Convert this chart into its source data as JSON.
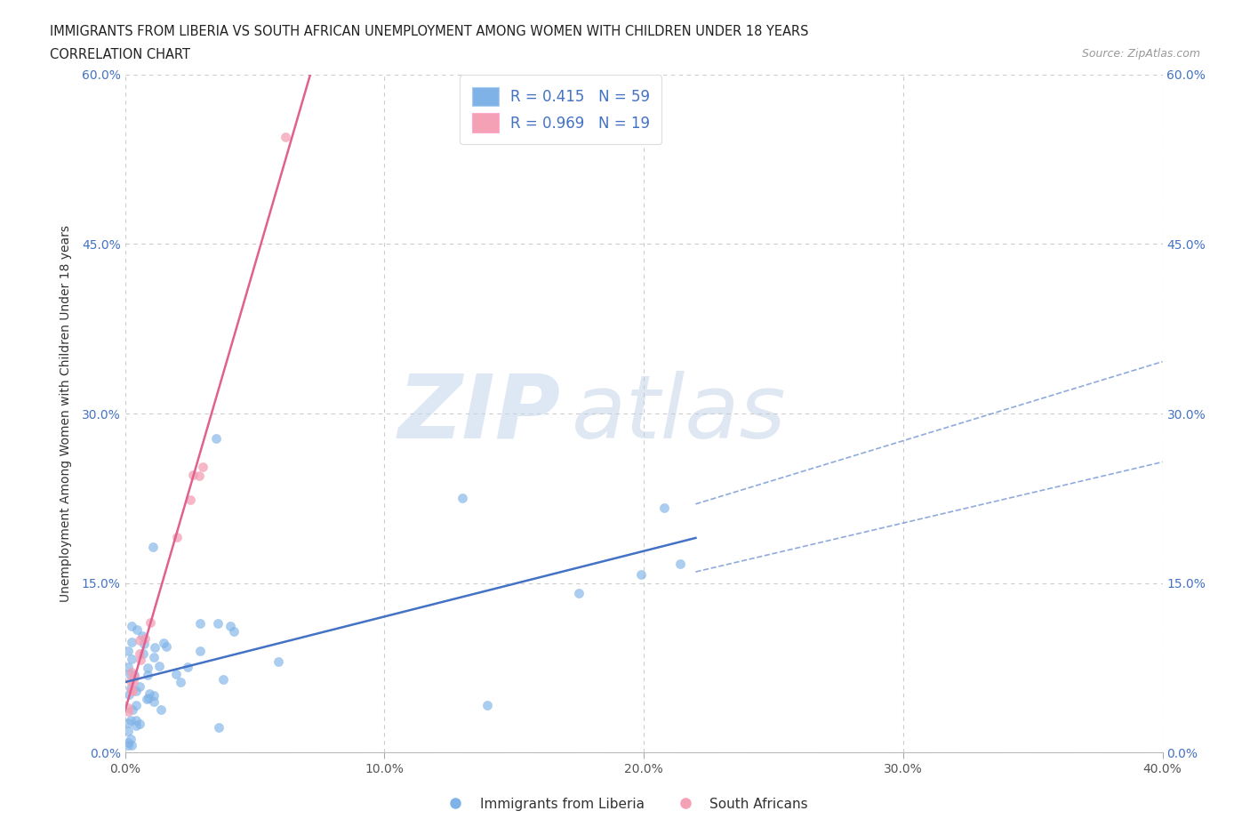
{
  "title_line1": "IMMIGRANTS FROM LIBERIA VS SOUTH AFRICAN UNEMPLOYMENT AMONG WOMEN WITH CHILDREN UNDER 18 YEARS",
  "title_line2": "CORRELATION CHART",
  "source_text": "Source: ZipAtlas.com",
  "watermark_zip": "ZIP",
  "watermark_atlas": "atlas",
  "ylabel": "Unemployment Among Women with Children Under 18 years",
  "xlim": [
    0.0,
    0.4
  ],
  "ylim": [
    0.0,
    0.6
  ],
  "xticks": [
    0.0,
    0.1,
    0.2,
    0.3,
    0.4
  ],
  "yticks": [
    0.0,
    0.15,
    0.3,
    0.45,
    0.6
  ],
  "xtick_labels": [
    "0.0%",
    "10.0%",
    "20.0%",
    "30.0%",
    "40.0%"
  ],
  "ytick_labels": [
    "0.0%",
    "15.0%",
    "30.0%",
    "45.0%",
    "60.0%"
  ],
  "color_blue": "#7fb3e8",
  "color_pink": "#f4a0b5",
  "line_blue": "#4472c4",
  "line_pink": "#e06090",
  "R_blue": 0.415,
  "N_blue": 59,
  "R_pink": 0.969,
  "N_pink": 19,
  "legend_label_blue": "Immigrants from Liberia",
  "legend_label_pink": "South Africans"
}
